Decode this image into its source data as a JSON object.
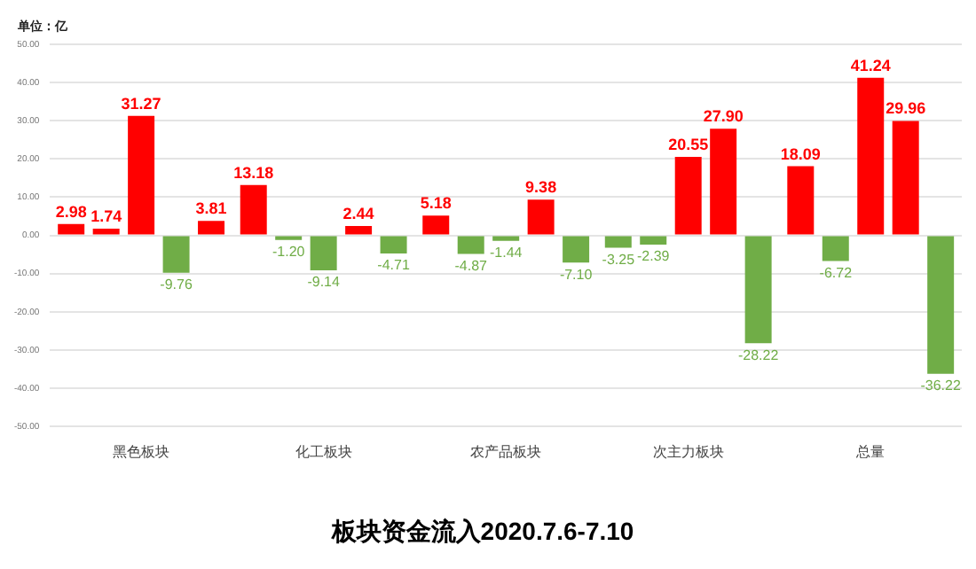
{
  "chart_data": {
    "type": "bar",
    "title": "板块资金流入2020.7.6-7.10",
    "annotations": [
      "单位：亿"
    ],
    "categories": [
      "黑色板块",
      "化工板块",
      "农产品板块",
      "次主力板块",
      "总量"
    ],
    "series": [
      {
        "values": [
          2.98,
          13.18,
          5.18,
          -3.25,
          18.09
        ],
        "colors": [
          "#ff0000",
          "#ff0000",
          "#ff0000",
          "#70ad47",
          "#ff0000"
        ],
        "value_labels": [
          "2.98",
          "13.18",
          "5.18",
          "-3.25",
          "18.09"
        ]
      },
      {
        "values": [
          1.74,
          -1.2,
          -4.87,
          -2.39,
          -6.72
        ],
        "colors": [
          "#ff0000",
          "#70ad47",
          "#70ad47",
          "#70ad47",
          "#70ad47"
        ],
        "value_labels": [
          "1.74",
          "-1.20",
          "-4.87",
          "-2.39",
          "-6.72"
        ]
      },
      {
        "values": [
          31.27,
          -9.14,
          -1.44,
          20.55,
          41.24
        ],
        "colors": [
          "#ff0000",
          "#70ad47",
          "#70ad47",
          "#ff0000",
          "#ff0000"
        ],
        "value_labels": [
          "31.27",
          "-9.14",
          "-1.44",
          "20.55",
          "41.24"
        ]
      },
      {
        "values": [
          -9.76,
          2.44,
          9.38,
          27.9,
          29.96
        ],
        "colors": [
          "#70ad47",
          "#ff0000",
          "#ff0000",
          "#ff0000",
          "#ff0000"
        ],
        "value_labels": [
          "-9.76",
          "2.44",
          "9.38",
          "27.90",
          "29.96"
        ]
      },
      {
        "values": [
          3.81,
          -4.71,
          -7.1,
          -28.22,
          -36.22
        ],
        "colors": [
          "#ff0000",
          "#70ad47",
          "#70ad47",
          "#70ad47",
          "#70ad47"
        ],
        "value_labels": [
          "3.81",
          "-4.71",
          "-7.10",
          "-28.22",
          "-36.22"
        ]
      }
    ],
    "ylim": [
      -50,
      50
    ],
    "yticks": [
      {
        "value": -50,
        "label": "-50.00"
      },
      {
        "value": -40,
        "label": "-40.00"
      },
      {
        "value": -30,
        "label": "-30.00"
      },
      {
        "value": -20,
        "label": "-20.00"
      },
      {
        "value": -10,
        "label": "-10.00"
      },
      {
        "value": 0,
        "label": "0.00"
      },
      {
        "value": 10,
        "label": "10.00"
      },
      {
        "value": 20,
        "label": "20.00"
      },
      {
        "value": 30,
        "label": "30.00"
      },
      {
        "value": 40,
        "label": "40.00"
      },
      {
        "value": 50,
        "label": "50.00"
      }
    ],
    "grid": "y",
    "legend": false
  }
}
